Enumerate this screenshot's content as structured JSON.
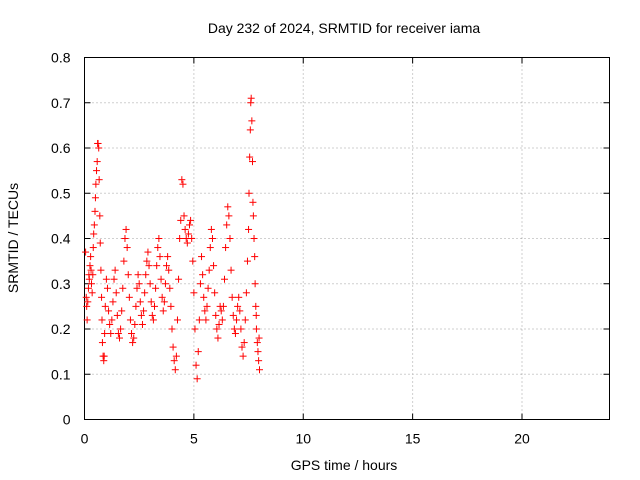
{
  "chart_data": {
    "type": "scatter",
    "title": "Day 232 of 2024, SRMTID for receiver iama",
    "xlabel": "GPS time / hours",
    "ylabel": "SRMTID / TECUs",
    "xlim": [
      0,
      24
    ],
    "ylim": [
      0,
      0.8
    ],
    "x_ticks": [
      0,
      5,
      10,
      15,
      20
    ],
    "x_tick_labels": [
      "0",
      "5",
      "10",
      "15",
      "20"
    ],
    "y_ticks": [
      0,
      0.1,
      0.2,
      0.3,
      0.4,
      0.5,
      0.6,
      0.7,
      0.8
    ],
    "y_tick_labels": [
      "0",
      "0.1",
      "0.2",
      "0.3",
      "0.4",
      "0.5",
      "0.6",
      "0.7",
      "0.8"
    ],
    "grid": true,
    "marker": "+",
    "color": "#ff0000",
    "series": [
      {
        "name": "SRMTID",
        "points": [
          [
            0.05,
            0.37
          ],
          [
            0.08,
            0.27
          ],
          [
            0.1,
            0.25
          ],
          [
            0.12,
            0.22
          ],
          [
            0.15,
            0.26
          ],
          [
            0.18,
            0.29
          ],
          [
            0.2,
            0.32
          ],
          [
            0.22,
            0.31
          ],
          [
            0.25,
            0.34
          ],
          [
            0.28,
            0.36
          ],
          [
            0.3,
            0.33
          ],
          [
            0.32,
            0.3
          ],
          [
            0.35,
            0.28
          ],
          [
            0.38,
            0.32
          ],
          [
            0.4,
            0.38
          ],
          [
            0.42,
            0.41
          ],
          [
            0.45,
            0.43
          ],
          [
            0.48,
            0.46
          ],
          [
            0.5,
            0.49
          ],
          [
            0.52,
            0.52
          ],
          [
            0.55,
            0.55
          ],
          [
            0.58,
            0.57
          ],
          [
            0.6,
            0.61
          ],
          [
            0.62,
            0.61
          ],
          [
            0.65,
            0.6
          ],
          [
            0.67,
            0.53
          ],
          [
            0.7,
            0.45
          ],
          [
            0.72,
            0.39
          ],
          [
            0.75,
            0.33
          ],
          [
            0.78,
            0.27
          ],
          [
            0.8,
            0.22
          ],
          [
            0.82,
            0.17
          ],
          [
            0.85,
            0.14
          ],
          [
            0.88,
            0.13
          ],
          [
            0.9,
            0.14
          ],
          [
            0.92,
            0.19
          ],
          [
            0.95,
            0.25
          ],
          [
            1.0,
            0.31
          ],
          [
            1.05,
            0.29
          ],
          [
            1.1,
            0.24
          ],
          [
            1.15,
            0.21
          ],
          [
            1.2,
            0.19
          ],
          [
            1.25,
            0.22
          ],
          [
            1.3,
            0.26
          ],
          [
            1.35,
            0.31
          ],
          [
            1.4,
            0.33
          ],
          [
            1.45,
            0.28
          ],
          [
            1.5,
            0.23
          ],
          [
            1.55,
            0.19
          ],
          [
            1.6,
            0.18
          ],
          [
            1.65,
            0.2
          ],
          [
            1.7,
            0.24
          ],
          [
            1.75,
            0.29
          ],
          [
            1.8,
            0.35
          ],
          [
            1.85,
            0.4
          ],
          [
            1.9,
            0.42
          ],
          [
            1.95,
            0.38
          ],
          [
            2.0,
            0.32
          ],
          [
            2.05,
            0.27
          ],
          [
            2.1,
            0.22
          ],
          [
            2.15,
            0.19
          ],
          [
            2.2,
            0.17
          ],
          [
            2.25,
            0.18
          ],
          [
            2.3,
            0.21
          ],
          [
            2.35,
            0.25
          ],
          [
            2.4,
            0.29
          ],
          [
            2.45,
            0.32
          ],
          [
            2.5,
            0.3
          ],
          [
            2.55,
            0.26
          ],
          [
            2.6,
            0.23
          ],
          [
            2.65,
            0.21
          ],
          [
            2.7,
            0.24
          ],
          [
            2.75,
            0.28
          ],
          [
            2.8,
            0.32
          ],
          [
            2.85,
            0.35
          ],
          [
            2.9,
            0.37
          ],
          [
            2.95,
            0.34
          ],
          [
            3.0,
            0.3
          ],
          [
            3.05,
            0.26
          ],
          [
            3.1,
            0.23
          ],
          [
            3.15,
            0.22
          ],
          [
            3.2,
            0.25
          ],
          [
            3.25,
            0.29
          ],
          [
            3.3,
            0.34
          ],
          [
            3.35,
            0.38
          ],
          [
            3.4,
            0.4
          ],
          [
            3.45,
            0.36
          ],
          [
            3.5,
            0.31
          ],
          [
            3.55,
            0.27
          ],
          [
            3.6,
            0.24
          ],
          [
            3.65,
            0.26
          ],
          [
            3.7,
            0.3
          ],
          [
            3.75,
            0.34
          ],
          [
            3.8,
            0.36
          ],
          [
            3.85,
            0.33
          ],
          [
            3.9,
            0.29
          ],
          [
            3.95,
            0.25
          ],
          [
            4.0,
            0.2
          ],
          [
            4.05,
            0.16
          ],
          [
            4.1,
            0.13
          ],
          [
            4.15,
            0.11
          ],
          [
            4.2,
            0.14
          ],
          [
            4.25,
            0.22
          ],
          [
            4.3,
            0.31
          ],
          [
            4.35,
            0.4
          ],
          [
            4.4,
            0.44
          ],
          [
            4.45,
            0.53
          ],
          [
            4.5,
            0.52
          ],
          [
            4.55,
            0.45
          ],
          [
            4.6,
            0.42
          ],
          [
            4.65,
            0.4
          ],
          [
            4.7,
            0.39
          ],
          [
            4.75,
            0.41
          ],
          [
            4.8,
            0.43
          ],
          [
            4.85,
            0.44
          ],
          [
            4.9,
            0.4
          ],
          [
            4.95,
            0.35
          ],
          [
            5.0,
            0.28
          ],
          [
            5.05,
            0.2
          ],
          [
            5.1,
            0.12
          ],
          [
            5.15,
            0.09
          ],
          [
            5.2,
            0.15
          ],
          [
            5.25,
            0.22
          ],
          [
            5.3,
            0.3
          ],
          [
            5.35,
            0.36
          ],
          [
            5.4,
            0.32
          ],
          [
            5.45,
            0.27
          ],
          [
            5.5,
            0.24
          ],
          [
            5.55,
            0.22
          ],
          [
            5.6,
            0.25
          ],
          [
            5.65,
            0.29
          ],
          [
            5.7,
            0.33
          ],
          [
            5.75,
            0.38
          ],
          [
            5.8,
            0.42
          ],
          [
            5.85,
            0.4
          ],
          [
            5.9,
            0.34
          ],
          [
            5.95,
            0.28
          ],
          [
            6.0,
            0.23
          ],
          [
            6.05,
            0.2
          ],
          [
            6.1,
            0.18
          ],
          [
            6.15,
            0.21
          ],
          [
            6.2,
            0.25
          ],
          [
            6.25,
            0.24
          ],
          [
            6.3,
            0.22
          ],
          [
            6.35,
            0.25
          ],
          [
            6.4,
            0.31
          ],
          [
            6.45,
            0.38
          ],
          [
            6.5,
            0.43
          ],
          [
            6.55,
            0.47
          ],
          [
            6.6,
            0.45
          ],
          [
            6.65,
            0.4
          ],
          [
            6.7,
            0.33
          ],
          [
            6.75,
            0.27
          ],
          [
            6.8,
            0.23
          ],
          [
            6.85,
            0.2
          ],
          [
            6.9,
            0.19
          ],
          [
            6.95,
            0.22
          ],
          [
            7.0,
            0.25
          ],
          [
            7.05,
            0.27
          ],
          [
            7.1,
            0.24
          ],
          [
            7.15,
            0.2
          ],
          [
            7.2,
            0.16
          ],
          [
            7.25,
            0.14
          ],
          [
            7.3,
            0.17
          ],
          [
            7.35,
            0.22
          ],
          [
            7.4,
            0.28
          ],
          [
            7.45,
            0.35
          ],
          [
            7.5,
            0.42
          ],
          [
            7.52,
            0.5
          ],
          [
            7.55,
            0.58
          ],
          [
            7.58,
            0.64
          ],
          [
            7.6,
            0.7
          ],
          [
            7.62,
            0.71
          ],
          [
            7.65,
            0.66
          ],
          [
            7.68,
            0.57
          ],
          [
            7.7,
            0.48
          ],
          [
            7.72,
            0.45
          ],
          [
            7.75,
            0.4
          ],
          [
            7.78,
            0.36
          ],
          [
            7.8,
            0.3
          ],
          [
            7.83,
            0.25
          ],
          [
            7.86,
            0.2
          ],
          [
            7.9,
            0.17
          ],
          [
            7.93,
            0.15
          ],
          [
            7.96,
            0.13
          ],
          [
            8.0,
            0.11
          ],
          [
            7.98,
            0.18
          ],
          [
            7.85,
            0.23
          ]
        ]
      }
    ]
  }
}
